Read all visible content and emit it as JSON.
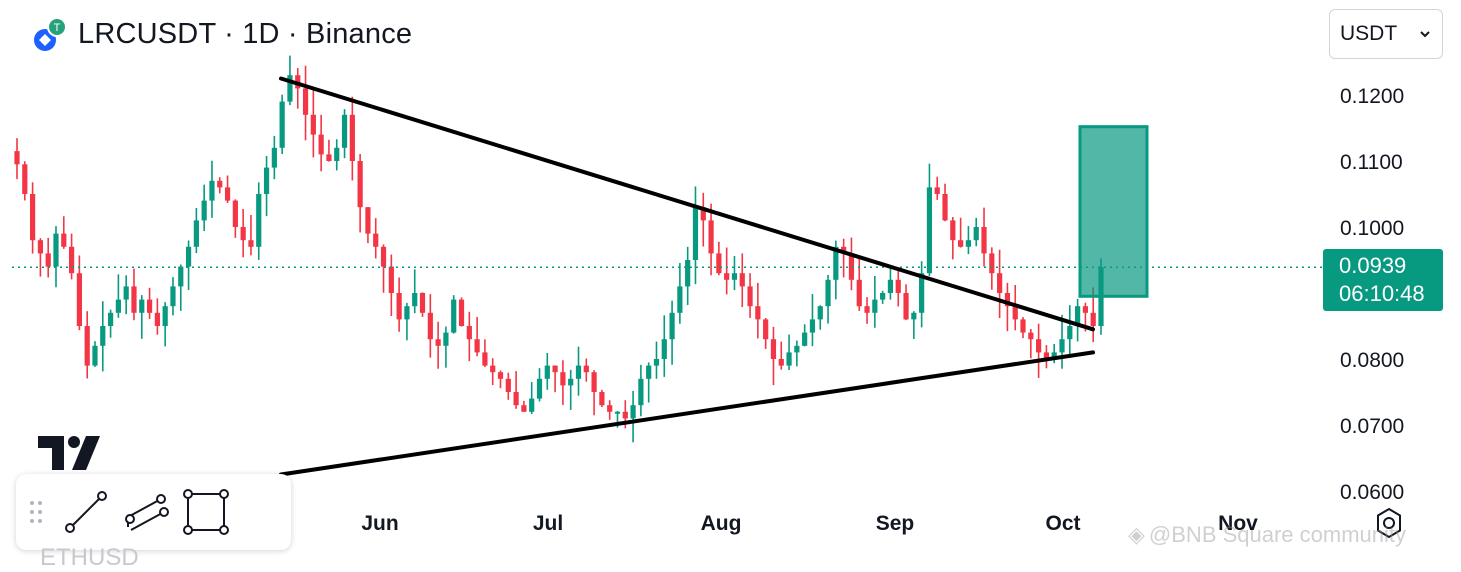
{
  "header": {
    "title": "LRCUSDT · 1D · Binance",
    "currency": "USDT"
  },
  "price_tag": {
    "price": "0.0939",
    "countdown": "06:10:48"
  },
  "watermark": "@BNB Square community",
  "under_text": "ETHUSD",
  "icons": [
    "lrc-coin-icon",
    "chevron-down-icon",
    "trend-line-icon",
    "parallel-channel-icon",
    "rectangle-tool-icon",
    "drag-handle-icon",
    "tradingview-logo-icon",
    "settings-icon"
  ],
  "colors": {
    "up": "#089981",
    "down": "#f23645",
    "target_box": "#089981",
    "trendline": "#000000"
  },
  "chart_data": {
    "type": "candlestick",
    "symbol": "LRCUSDT",
    "timeframe": "1D",
    "exchange": "Binance",
    "y_ticks": [
      "0.1200",
      "0.1100",
      "0.1000",
      "0.0800",
      "0.0700",
      "0.0600"
    ],
    "ylim": [
      0.059,
      0.1255
    ],
    "x_ticks": [
      "Jun",
      "Jul",
      "Aug",
      "Sep",
      "Oct",
      "Nov"
    ],
    "last_price": 0.0939,
    "series_anchor_price": [
      [
        0.1095,
        0.105,
        0.098,
        0.096,
        0.094,
        0.099,
        0.097,
        0.093,
        0.085,
        0.079,
        0.082,
        0.085,
        0.087,
        0.089,
        0.091,
        0.087,
        0.089,
        0.087,
        0.085,
        0.088,
        0.091,
        0.094,
        0.097,
        0.101,
        0.104,
        0.107,
        0.106,
        0.104,
        0.1,
        0.098,
        0.097,
        0.105,
        0.109,
        0.112,
        0.119,
        0.123,
        0.121,
        0.117,
        0.114,
        0.111,
        0.11,
        0.112,
        0.117,
        0.11,
        0.103,
        0.099,
        0.097,
        0.094,
        0.09,
        0.086,
        0.088,
        0.09,
        0.087,
        0.083,
        0.082,
        0.084,
        0.089,
        0.085,
        0.083,
        0.081,
        0.079,
        0.078,
        0.077,
        0.075,
        0.073,
        0.072,
        0.074,
        0.077,
        0.079,
        0.078,
        0.076,
        0.077,
        0.079,
        0.078,
        0.075,
        0.073,
        0.072,
        0.072,
        0.071,
        0.073,
        0.077,
        0.079,
        0.08,
        0.083,
        0.087,
        0.091,
        0.095,
        0.103,
        0.101,
        0.096,
        0.093,
        0.092,
        0.093,
        0.091,
        0.088,
        0.086,
        0.083,
        0.08,
        0.079,
        0.081,
        0.082,
        0.084,
        0.086,
        0.088,
        0.092,
        0.097,
        0.096,
        0.092,
        0.088,
        0.087,
        0.089,
        0.09,
        0.092,
        0.09,
        0.086,
        0.087,
        0.093,
        0.106,
        0.105,
        0.101,
        0.098,
        0.097,
        0.098,
        0.1,
        0.096,
        0.093,
        0.09,
        0.088,
        0.086,
        0.084,
        0.083,
        0.081,
        0.08,
        0.081,
        0.083,
        0.085,
        0.088,
        0.087,
        0.085,
        0.0939
      ]
    ],
    "trendlines": [
      {
        "name": "descending-resistance",
        "from": {
          "date": "2024-05-19",
          "price": 0.1225
        },
        "to": {
          "date": "2024-10-08",
          "price": 0.0845
        }
      },
      {
        "name": "ascending-support",
        "from": {
          "date": "2024-05-19",
          "price": 0.0625
        },
        "to": {
          "date": "2024-10-08",
          "price": 0.081
        }
      }
    ],
    "target_zone": {
      "from_date": "2024-10-08",
      "to_date": "2024-10-12",
      "top": 0.1152,
      "bottom": 0.0895
    },
    "grid": false,
    "legend": "none"
  }
}
